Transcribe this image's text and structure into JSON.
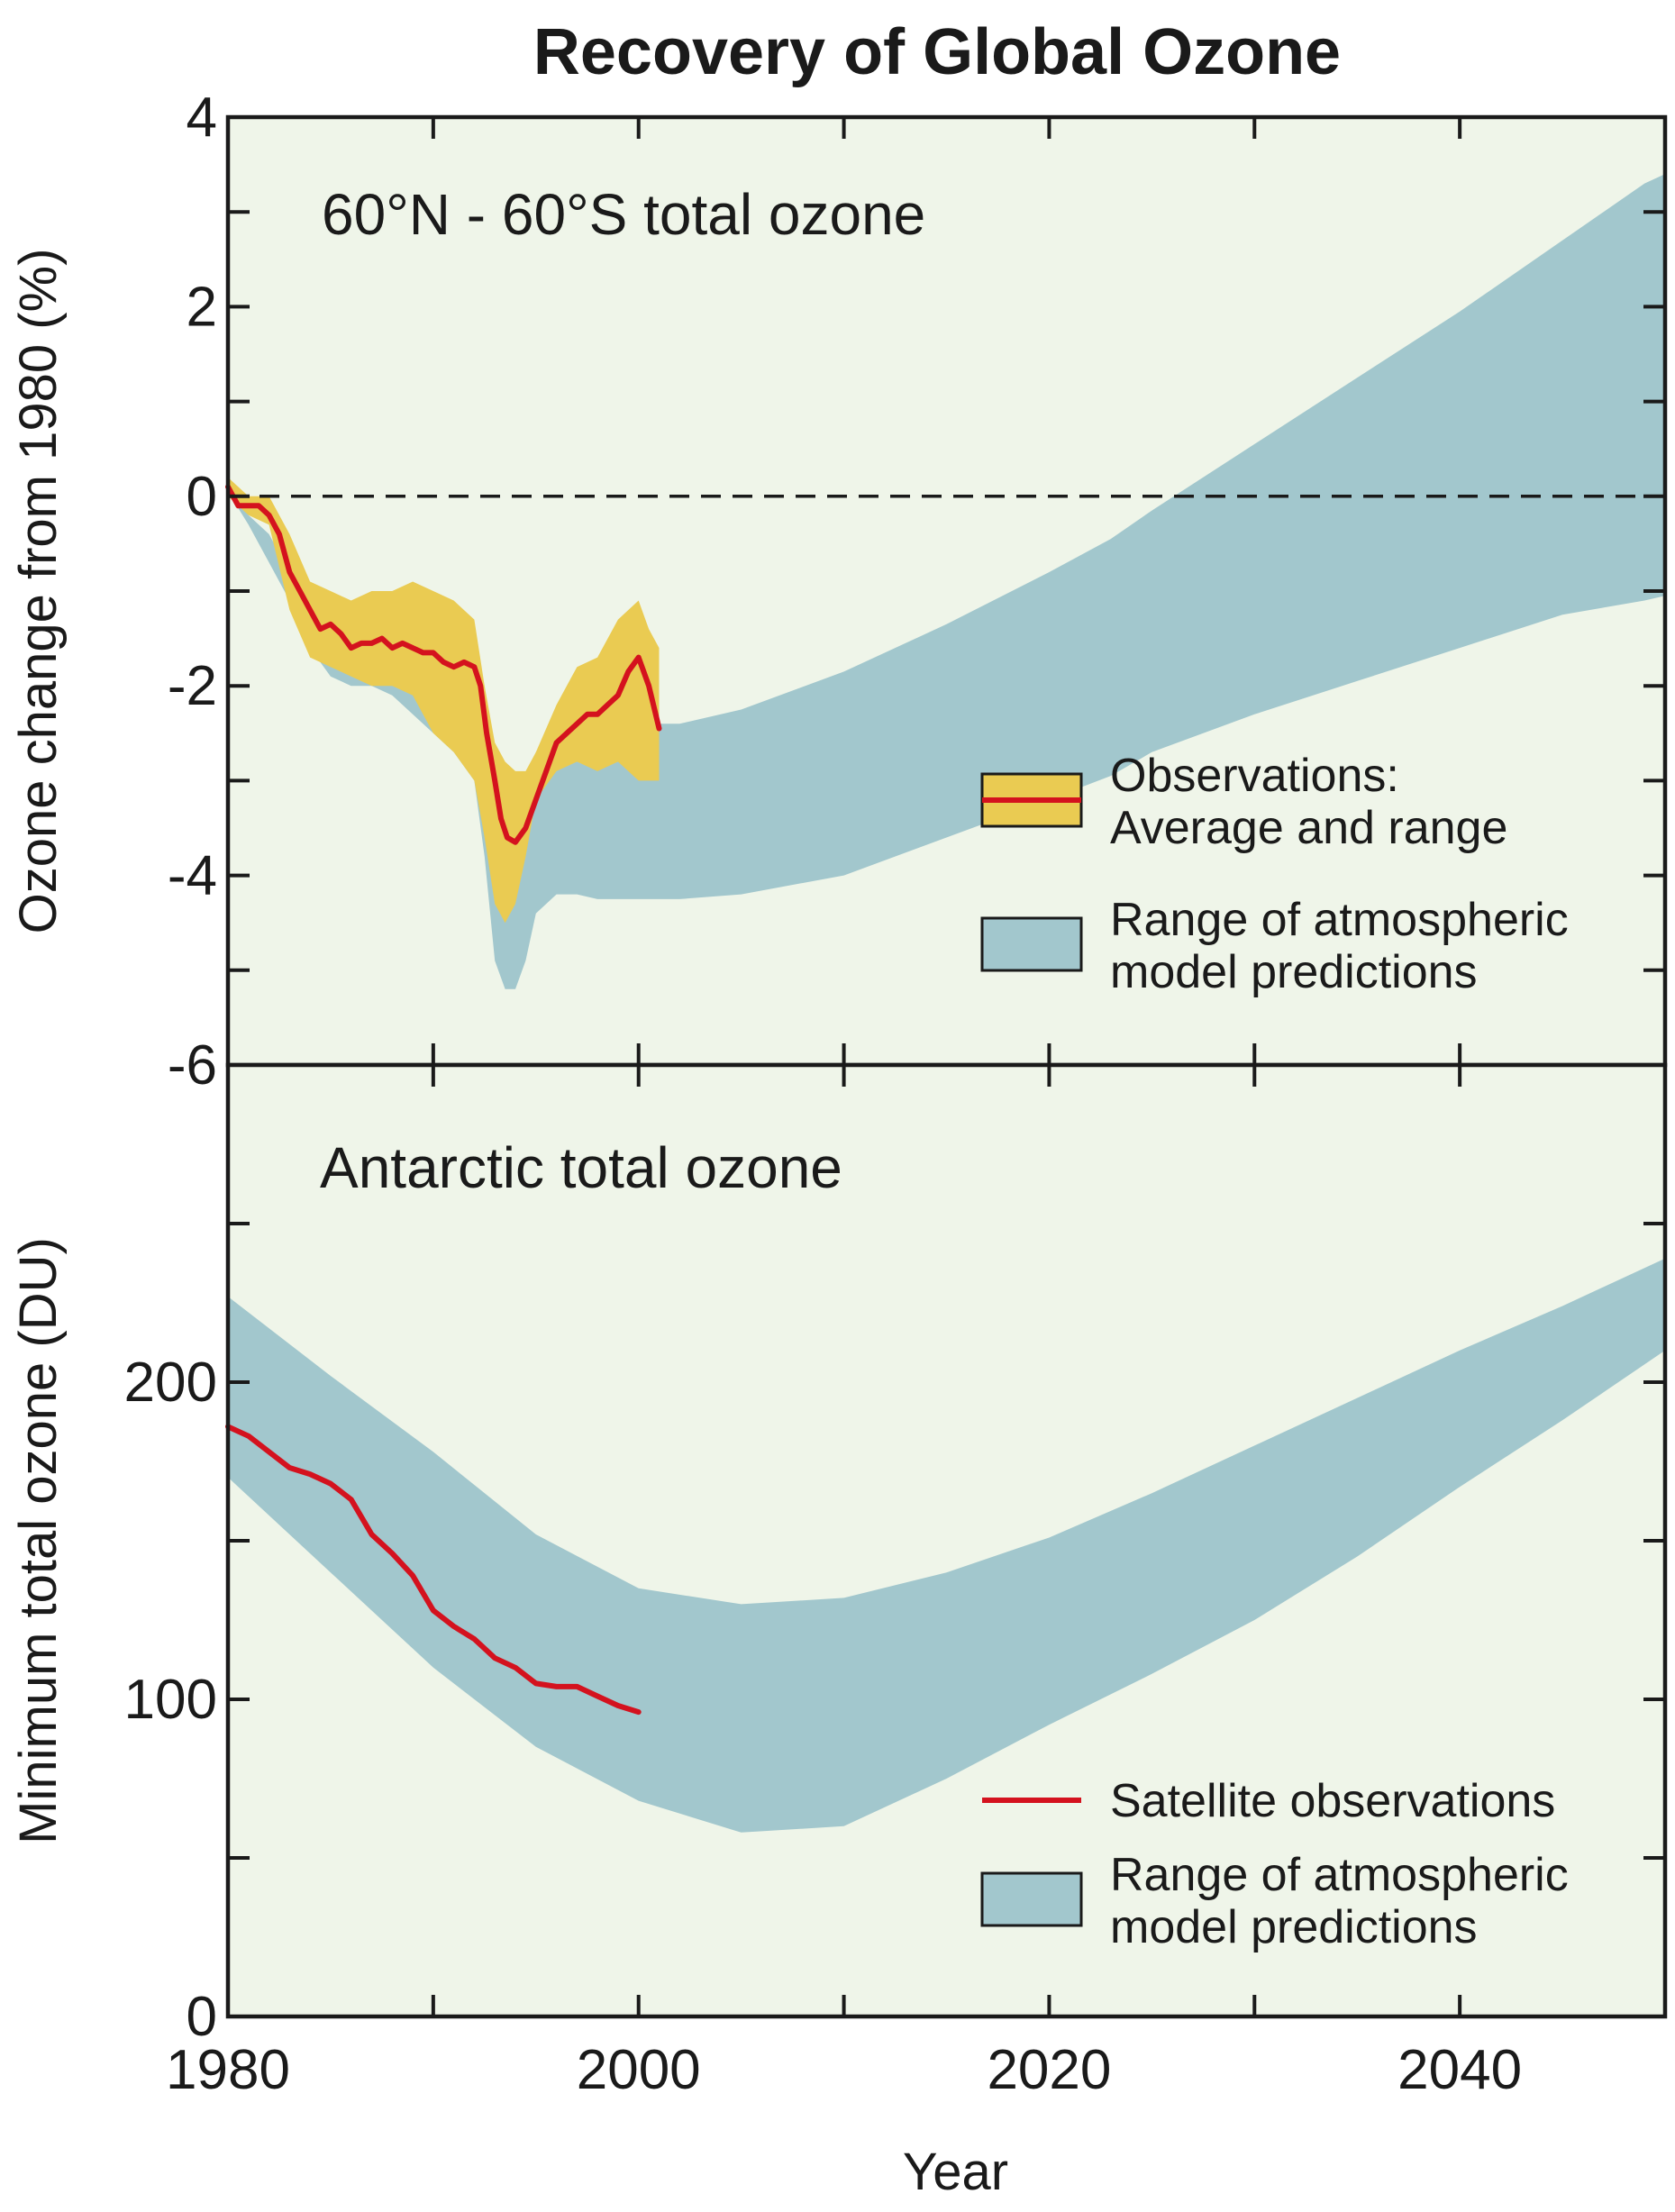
{
  "colors": {
    "background": "#eff5e9",
    "model_band": "#a2c7cd",
    "obs_band": "#eacb52",
    "obs_line": "#d4121e",
    "axis": "#1a1a1a"
  },
  "chart_data": [
    {
      "type": "area",
      "title": "Recovery of Global Ozone",
      "panel_label": "60°N - 60°S total ozone",
      "ylabel": "Ozone change from 1980 (%)",
      "xlabel": "",
      "xlim": [
        1980,
        2050
      ],
      "ylim": [
        -6,
        4
      ],
      "x_ticks": [
        1980,
        1990,
        2000,
        2010,
        2020,
        2030,
        2040,
        2050
      ],
      "y_ticks": [
        -6,
        -5,
        -4,
        -3,
        -2,
        -1,
        0,
        1,
        2,
        3,
        4
      ],
      "y_tick_labels": [
        "-6",
        "-4",
        "-2",
        "0",
        "2",
        "4"
      ],
      "reference_line": 0,
      "grid": false,
      "legend_position": "lower-right",
      "legend": [
        {
          "label_line1": "Observations:",
          "label_line2": "Average and range"
        },
        {
          "label_line1": "Range of atmospheric",
          "label_line2": "model predictions"
        }
      ],
      "series": [
        {
          "name": "Range of atmospheric model predictions",
          "kind": "band",
          "x": [
            1980,
            1981,
            1982,
            1983,
            1984,
            1985,
            1986,
            1987,
            1988,
            1989,
            1990,
            1991,
            1992,
            1992.5,
            1993,
            1993.5,
            1994,
            1994.5,
            1995,
            1996,
            1997,
            1998,
            1999,
            2000,
            2001,
            2002,
            2005,
            2010,
            2015,
            2020,
            2023,
            2025,
            2030,
            2035,
            2040,
            2045,
            2049,
            2050
          ],
          "upper": [
            0.1,
            -0.2,
            -0.4,
            -0.8,
            -1.3,
            -1.5,
            -1.7,
            -1.8,
            -1.9,
            -2.0,
            -2.1,
            -2.2,
            -2.4,
            -2.8,
            -3.3,
            -3.4,
            -3.3,
            -3.0,
            -2.7,
            -2.5,
            -2.4,
            -2.35,
            -2.3,
            -2.35,
            -2.4,
            -2.4,
            -2.25,
            -1.85,
            -1.35,
            -0.8,
            -0.45,
            -0.15,
            0.55,
            1.25,
            1.95,
            2.7,
            3.3,
            3.4
          ],
          "lower": [
            0.05,
            -0.3,
            -0.7,
            -1.1,
            -1.6,
            -1.9,
            -2.0,
            -2.0,
            -2.1,
            -2.3,
            -2.5,
            -2.7,
            -3.0,
            -3.8,
            -4.9,
            -5.2,
            -5.2,
            -4.9,
            -4.4,
            -4.2,
            -4.2,
            -4.25,
            -4.25,
            -4.25,
            -4.25,
            -4.25,
            -4.2,
            -4.0,
            -3.6,
            -3.2,
            -2.95,
            -2.7,
            -2.3,
            -1.95,
            -1.6,
            -1.25,
            -1.1,
            -1.05
          ]
        },
        {
          "name": "Observations: Average and range",
          "kind": "band",
          "x": [
            1980,
            1981,
            1982,
            1983,
            1984,
            1985,
            1986,
            1987,
            1988,
            1989,
            1990,
            1991,
            1992,
            1992.5,
            1993,
            1993.5,
            1994,
            1994.5,
            1995,
            1996,
            1997,
            1998,
            1999,
            2000,
            2000.5,
            2001
          ],
          "upper": [
            0.2,
            0.0,
            0.0,
            -0.4,
            -0.9,
            -1.0,
            -1.1,
            -1.0,
            -1.0,
            -0.9,
            -1.0,
            -1.1,
            -1.3,
            -2.0,
            -2.6,
            -2.8,
            -2.9,
            -2.9,
            -2.7,
            -2.2,
            -1.8,
            -1.7,
            -1.3,
            -1.1,
            -1.4,
            -1.6
          ],
          "lower": [
            0.0,
            -0.2,
            -0.3,
            -1.2,
            -1.7,
            -1.8,
            -1.9,
            -2.0,
            -2.0,
            -2.1,
            -2.5,
            -2.7,
            -3.0,
            -3.6,
            -4.3,
            -4.5,
            -4.3,
            -3.8,
            -3.2,
            -2.9,
            -2.8,
            -2.9,
            -2.8,
            -3.0,
            -3.0,
            -3.0
          ]
        },
        {
          "name": "Observations: Average",
          "kind": "line",
          "x": [
            1980,
            1980.5,
            1981,
            1981.5,
            1982,
            1982.5,
            1983,
            1983.5,
            1984,
            1984.5,
            1985,
            1985.5,
            1986,
            1986.5,
            1987,
            1987.5,
            1988,
            1988.5,
            1989,
            1989.5,
            1990,
            1990.5,
            1991,
            1991.5,
            1992,
            1992.3,
            1992.6,
            1993,
            1993.3,
            1993.6,
            1994,
            1994.5,
            1995,
            1995.5,
            1996,
            1996.5,
            1997,
            1997.5,
            1998,
            1998.5,
            1999,
            1999.5,
            2000,
            2000.5,
            2001
          ],
          "values": [
            0.1,
            -0.1,
            -0.1,
            -0.1,
            -0.2,
            -0.4,
            -0.8,
            -1.0,
            -1.2,
            -1.4,
            -1.35,
            -1.45,
            -1.6,
            -1.55,
            -1.55,
            -1.5,
            -1.6,
            -1.55,
            -1.6,
            -1.65,
            -1.65,
            -1.75,
            -1.8,
            -1.75,
            -1.8,
            -2.0,
            -2.5,
            -3.0,
            -3.4,
            -3.6,
            -3.65,
            -3.5,
            -3.2,
            -2.9,
            -2.6,
            -2.5,
            -2.4,
            -2.3,
            -2.3,
            -2.2,
            -2.1,
            -1.85,
            -1.7,
            -2.0,
            -2.45
          ]
        }
      ]
    },
    {
      "type": "area",
      "panel_label": "Antarctic total ozone",
      "ylabel": "Minimum total ozone (DU)",
      "xlabel": "Year",
      "xlim": [
        1980,
        2050
      ],
      "ylim": [
        0,
        300
      ],
      "x_ticks": [
        1980,
        1990,
        2000,
        2010,
        2020,
        2030,
        2040,
        2050
      ],
      "x_tick_labels": [
        "1980",
        "2000",
        "2020",
        "2040"
      ],
      "y_ticks": [
        0,
        50,
        100,
        150,
        200,
        250,
        300
      ],
      "y_tick_labels": [
        "0",
        "100",
        "200"
      ],
      "grid": false,
      "legend_position": "lower-right",
      "legend": [
        {
          "label_line1": "Satellite observations",
          "label_line2": ""
        },
        {
          "label_line1": "Range of atmospheric",
          "label_line2": "model predictions"
        }
      ],
      "series": [
        {
          "name": "Range of atmospheric model predictions",
          "kind": "band",
          "x": [
            1980,
            1985,
            1990,
            1995,
            2000,
            2005,
            2010,
            2015,
            2020,
            2025,
            2030,
            2035,
            2040,
            2045,
            2050
          ],
          "upper": [
            227,
            202,
            178,
            152,
            135,
            130,
            132,
            140,
            151,
            165,
            180,
            195,
            210,
            224,
            239
          ],
          "lower": [
            170,
            140,
            110,
            85,
            68,
            58,
            60,
            75,
            92,
            108,
            125,
            145,
            167,
            188,
            210
          ]
        },
        {
          "name": "Satellite observations",
          "kind": "line",
          "x": [
            1980,
            1981,
            1982,
            1983,
            1984,
            1985,
            1986,
            1987,
            1988,
            1989,
            1990,
            1991,
            1992,
            1993,
            1994,
            1995,
            1996,
            1997,
            1998,
            1999,
            2000
          ],
          "values": [
            186,
            183,
            178,
            173,
            171,
            168,
            163,
            152,
            146,
            139,
            128,
            123,
            119,
            113,
            110,
            105,
            104,
            104,
            101,
            98,
            96
          ]
        }
      ]
    }
  ]
}
